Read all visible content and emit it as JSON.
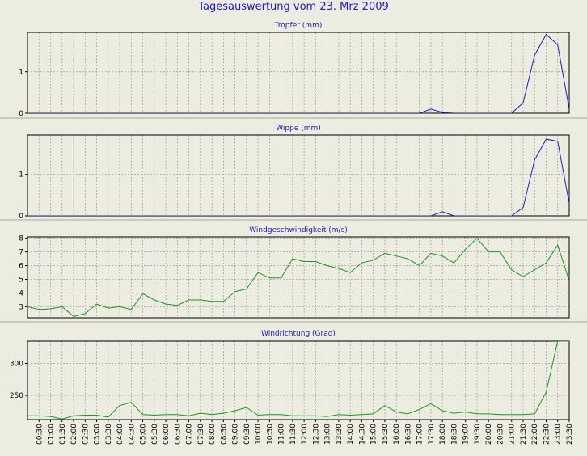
{
  "page": {
    "title": "Tagesauswertung vom 23. Mrz 2009"
  },
  "chart_data": [
    {
      "type": "line",
      "title": "Tropfer (mm)",
      "color": "#1e1ed2",
      "ylim": [
        0,
        1.95
      ],
      "yticks": [
        0,
        1
      ],
      "grid": true,
      "x": [
        "00:00",
        "00:30",
        "01:00",
        "01:30",
        "02:00",
        "02:30",
        "03:00",
        "03:30",
        "04:00",
        "04:30",
        "05:00",
        "05:30",
        "06:00",
        "06:30",
        "07:00",
        "07:30",
        "08:00",
        "08:30",
        "09:00",
        "09:30",
        "10:00",
        "10:30",
        "11:00",
        "11:30",
        "12:00",
        "12:30",
        "13:00",
        "13:30",
        "14:00",
        "14:30",
        "15:00",
        "15:30",
        "16:00",
        "16:30",
        "17:00",
        "17:30",
        "18:00",
        "18:30",
        "19:00",
        "19:30",
        "20:00",
        "20:30",
        "21:00",
        "21:30",
        "22:00",
        "22:30",
        "23:00",
        "23:30"
      ],
      "values": [
        0,
        0,
        0,
        0,
        0,
        0,
        0,
        0,
        0,
        0,
        0,
        0,
        0,
        0,
        0,
        0,
        0,
        0,
        0,
        0,
        0,
        0,
        0,
        0,
        0,
        0,
        0,
        0,
        0,
        0,
        0,
        0,
        0,
        0,
        0,
        0.1,
        0.02,
        0,
        0,
        0,
        0,
        0,
        0,
        0.25,
        1.4,
        1.9,
        1.65,
        0.1
      ]
    },
    {
      "type": "line",
      "title": "Wippe (mm)",
      "color": "#1e1ed2",
      "ylim": [
        0,
        1.95
      ],
      "yticks": [
        0,
        1
      ],
      "grid": true,
      "x": [
        "00:00",
        "00:30",
        "01:00",
        "01:30",
        "02:00",
        "02:30",
        "03:00",
        "03:30",
        "04:00",
        "04:30",
        "05:00",
        "05:30",
        "06:00",
        "06:30",
        "07:00",
        "07:30",
        "08:00",
        "08:30",
        "09:00",
        "09:30",
        "10:00",
        "10:30",
        "11:00",
        "11:30",
        "12:00",
        "12:30",
        "13:00",
        "13:30",
        "14:00",
        "14:30",
        "15:00",
        "15:30",
        "16:00",
        "16:30",
        "17:00",
        "17:30",
        "18:00",
        "18:30",
        "19:00",
        "19:30",
        "20:00",
        "20:30",
        "21:00",
        "21:30",
        "22:00",
        "22:30",
        "23:00",
        "23:30"
      ],
      "values": [
        0,
        0,
        0,
        0,
        0,
        0,
        0,
        0,
        0,
        0,
        0,
        0,
        0,
        0,
        0,
        0,
        0,
        0,
        0,
        0,
        0,
        0,
        0,
        0,
        0,
        0,
        0,
        0,
        0,
        0,
        0,
        0,
        0,
        0,
        0,
        0,
        0.1,
        0,
        0,
        0,
        0,
        0,
        0,
        0.2,
        1.35,
        1.85,
        1.8,
        0.3
      ]
    },
    {
      "type": "line",
      "title": "Windgeschwindigkeit (m/s)",
      "color": "#1e961e",
      "ylim": [
        2.2,
        8.1
      ],
      "yticks": [
        3,
        4,
        5,
        6,
        7,
        8
      ],
      "grid": true,
      "x": [
        "00:00",
        "00:30",
        "01:00",
        "01:30",
        "02:00",
        "02:30",
        "03:00",
        "03:30",
        "04:00",
        "04:30",
        "05:00",
        "05:30",
        "06:00",
        "06:30",
        "07:00",
        "07:30",
        "08:00",
        "08:30",
        "09:00",
        "09:30",
        "10:00",
        "10:30",
        "11:00",
        "11:30",
        "12:00",
        "12:30",
        "13:00",
        "13:30",
        "14:00",
        "14:30",
        "15:00",
        "15:30",
        "16:00",
        "16:30",
        "17:00",
        "17:30",
        "18:00",
        "18:30",
        "19:00",
        "19:30",
        "20:00",
        "20:30",
        "21:00",
        "21:30",
        "22:00",
        "22:30",
        "23:00",
        "23:30"
      ],
      "values": [
        3.0,
        2.8,
        2.85,
        3.0,
        2.3,
        2.5,
        3.2,
        2.9,
        3.0,
        2.8,
        3.95,
        3.5,
        3.2,
        3.1,
        3.5,
        3.5,
        3.4,
        3.4,
        4.1,
        4.3,
        5.5,
        5.1,
        5.1,
        6.5,
        6.3,
        6.3,
        6.0,
        5.8,
        5.5,
        6.2,
        6.4,
        6.9,
        6.7,
        6.5,
        6.0,
        6.9,
        6.7,
        6.2,
        7.2,
        8.0,
        7.0,
        7.0,
        5.7,
        5.2,
        5.7,
        6.2,
        7.5,
        4.9
      ]
    },
    {
      "type": "line",
      "title": "Windrichtung (Grad)",
      "color": "#1e961e",
      "ylim": [
        212,
        335
      ],
      "yticks": [
        250,
        300
      ],
      "grid": true,
      "x": [
        "00:00",
        "00:30",
        "01:00",
        "01:30",
        "02:00",
        "02:30",
        "03:00",
        "03:30",
        "04:00",
        "04:30",
        "05:00",
        "05:30",
        "06:00",
        "06:30",
        "07:00",
        "07:30",
        "08:00",
        "08:30",
        "09:00",
        "09:30",
        "10:00",
        "10:30",
        "11:00",
        "11:30",
        "12:00",
        "12:30",
        "13:00",
        "13:30",
        "14:00",
        "14:30",
        "15:00",
        "15:30",
        "16:00",
        "16:30",
        "17:00",
        "17:30",
        "18:00",
        "18:30",
        "19:00",
        "19:30",
        "20:00",
        "20:30",
        "21:00",
        "21:30",
        "22:00",
        "22:30",
        "23:00",
        "23:30"
      ],
      "values": [
        218,
        218,
        217,
        213,
        218,
        219,
        219,
        216,
        234,
        239,
        220,
        219,
        220,
        220,
        218,
        222,
        220,
        222,
        226,
        231,
        219,
        220,
        220,
        218,
        218,
        218,
        217,
        220,
        219,
        220,
        221,
        234,
        224,
        221,
        228,
        237,
        226,
        222,
        224,
        221,
        221,
        220,
        220,
        220,
        221,
        255,
        335,
        335
      ]
    }
  ],
  "x_axis": {
    "labels": [
      "00:30",
      "01:00",
      "01:30",
      "02:00",
      "02:30",
      "03:00",
      "03:30",
      "04:00",
      "04:30",
      "05:00",
      "05:30",
      "06:00",
      "06:30",
      "07:00",
      "07:30",
      "08:00",
      "08:30",
      "09:00",
      "09:30",
      "10:00",
      "10:30",
      "11:00",
      "11:30",
      "12:00",
      "12:30",
      "13:00",
      "13:30",
      "14:00",
      "14:30",
      "15:00",
      "15:30",
      "16:00",
      "16:30",
      "17:00",
      "17:30",
      "18:00",
      "18:30",
      "19:00",
      "19:30",
      "20:00",
      "20:30",
      "21:00",
      "21:30",
      "22:00",
      "22:30",
      "23:00",
      "23:30"
    ]
  }
}
